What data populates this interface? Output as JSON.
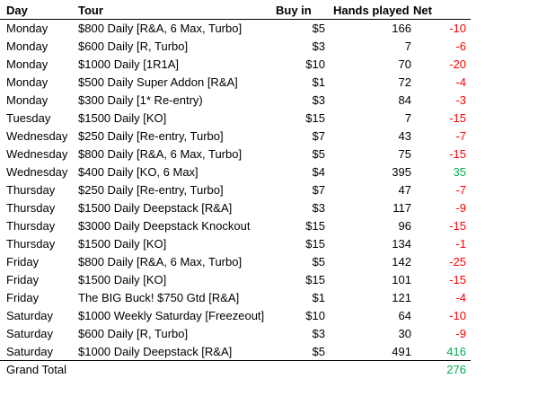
{
  "colors": {
    "negative": "#ff0000",
    "positive": "#00b050",
    "text": "#000000"
  },
  "headers": {
    "day": "Day",
    "tour": "Tour",
    "buyin": "Buy in",
    "hands": "Hands played",
    "net": "Net"
  },
  "rows": [
    {
      "day": "Monday",
      "tour": "$800 Daily [R&A, 6 Max, Turbo]",
      "buyin": "$5",
      "hands": "166",
      "net": "-10"
    },
    {
      "day": "Monday",
      "tour": "$600 Daily [R, Turbo]",
      "buyin": "$3",
      "hands": "7",
      "net": "-6"
    },
    {
      "day": "Monday",
      "tour": "$1000 Daily [1R1A]",
      "buyin": "$10",
      "hands": "70",
      "net": "-20"
    },
    {
      "day": "Monday",
      "tour": "$500 Daily Super Addon [R&A]",
      "buyin": "$1",
      "hands": "72",
      "net": "-4"
    },
    {
      "day": "Monday",
      "tour": "$300 Daily [1* Re-entry)",
      "buyin": "$3",
      "hands": "84",
      "net": "-3"
    },
    {
      "day": "Tuesday",
      "tour": "$1500 Daily [KO]",
      "buyin": "$15",
      "hands": "7",
      "net": "-15"
    },
    {
      "day": "Wednesday",
      "tour": "$250 Daily [Re-entry, Turbo]",
      "buyin": "$7",
      "hands": "43",
      "net": "-7"
    },
    {
      "day": "Wednesday",
      "tour": "$800 Daily [R&A, 6 Max, Turbo]",
      "buyin": "$5",
      "hands": "75",
      "net": "-15"
    },
    {
      "day": "Wednesday",
      "tour": "$400 Daily [KO, 6 Max]",
      "buyin": "$4",
      "hands": "395",
      "net": "35"
    },
    {
      "day": "Thursday",
      "tour": "$250 Daily [Re-entry, Turbo]",
      "buyin": "$7",
      "hands": "47",
      "net": "-7"
    },
    {
      "day": "Thursday",
      "tour": "$1500 Daily Deepstack [R&A]",
      "buyin": "$3",
      "hands": "117",
      "net": "-9"
    },
    {
      "day": "Thursday",
      "tour": "$3000 Daily Deepstack Knockout",
      "buyin": "$15",
      "hands": "96",
      "net": "-15"
    },
    {
      "day": "Thursday",
      "tour": "$1500 Daily [KO]",
      "buyin": "$15",
      "hands": "134",
      "net": "-1"
    },
    {
      "day": "Friday",
      "tour": "$800 Daily [R&A, 6 Max, Turbo]",
      "buyin": "$5",
      "hands": "142",
      "net": "-25"
    },
    {
      "day": "Friday",
      "tour": "$1500 Daily [KO]",
      "buyin": "$15",
      "hands": "101",
      "net": "-15"
    },
    {
      "day": "Friday",
      "tour": "The BIG Buck! $750 Gtd [R&A]",
      "buyin": "$1",
      "hands": "121",
      "net": "-4"
    },
    {
      "day": "Saturday",
      "tour": "$1000 Weekly Saturday [Freezeout]",
      "buyin": "$10",
      "hands": "64",
      "net": "-10"
    },
    {
      "day": "Saturday",
      "tour": "$600 Daily [R, Turbo]",
      "buyin": "$3",
      "hands": "30",
      "net": "-9"
    },
    {
      "day": "Saturday",
      "tour": "$1000 Daily Deepstack  [R&A]",
      "buyin": "$5",
      "hands": "491",
      "net": "416"
    }
  ],
  "total": {
    "label": "Grand Total",
    "net": "276"
  }
}
